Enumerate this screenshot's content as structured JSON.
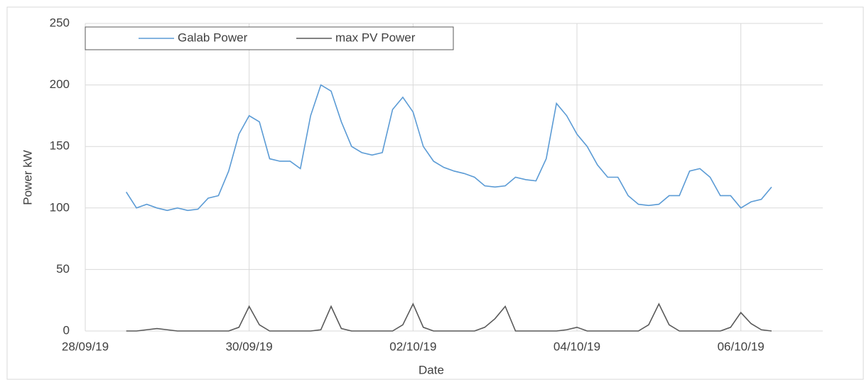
{
  "chart_data": {
    "type": "line",
    "xlabel": "Date",
    "ylabel": "Power kW",
    "x": [
      43736.5,
      43736.625,
      43736.75,
      43736.875,
      43737,
      43737.125,
      43737.25,
      43737.375,
      43737.5,
      43737.625,
      43737.75,
      43737.875,
      43738,
      43738.125,
      43738.25,
      43738.375,
      43738.5,
      43738.625,
      43738.75,
      43738.875,
      43739,
      43739.125,
      43739.25,
      43739.375,
      43739.5,
      43739.625,
      43739.75,
      43739.875,
      43740,
      43740.125,
      43740.25,
      43740.375,
      43740.5,
      43740.625,
      43740.75,
      43740.875,
      43741,
      43741.125,
      43741.25,
      43741.375,
      43741.5,
      43741.625,
      43741.75,
      43741.875,
      43742,
      43742.125,
      43742.25,
      43742.375,
      43742.5,
      43742.625,
      43742.75,
      43742.875,
      43743,
      43743.125,
      43743.25,
      43743.375,
      43743.5,
      43743.625,
      43743.75,
      43743.875,
      43744,
      43744.125,
      43744.25,
      43744.375
    ],
    "series": [
      {
        "name": "Galab Power",
        "color": "#5b9bd5",
        "values": [
          113,
          100,
          103,
          100,
          98,
          100,
          98,
          99,
          108,
          110,
          130,
          160,
          175,
          170,
          140,
          138,
          138,
          132,
          175,
          200,
          195,
          170,
          150,
          145,
          143,
          145,
          180,
          190,
          178,
          150,
          138,
          133,
          130,
          128,
          125,
          118,
          117,
          118,
          125,
          123,
          122,
          140,
          185,
          175,
          160,
          150,
          135,
          125,
          125,
          110,
          103,
          102,
          103,
          110,
          110,
          130,
          132,
          125,
          110,
          110,
          100,
          105,
          107,
          117
        ]
      },
      {
        "name": "max PV Power",
        "color": "#595959",
        "values": [
          0,
          0,
          1,
          2,
          1,
          0,
          0,
          0,
          0,
          0,
          0,
          3,
          20,
          5,
          0,
          0,
          0,
          0,
          0,
          1,
          20,
          2,
          0,
          0,
          0,
          0,
          0,
          5,
          22,
          3,
          0,
          0,
          0,
          0,
          0,
          3,
          10,
          20,
          0,
          0,
          0,
          0,
          0,
          1,
          3,
          0,
          0,
          0,
          0,
          0,
          0,
          5,
          22,
          5,
          0,
          0,
          0,
          0,
          0,
          3,
          15,
          6,
          1,
          0
        ]
      }
    ],
    "xlim": [
      43736,
      43745
    ],
    "xticks": [
      {
        "value": 43736,
        "label": "28/09/19"
      },
      {
        "value": 43738,
        "label": "30/09/19"
      },
      {
        "value": 43740,
        "label": "02/10/19"
      },
      {
        "value": 43742,
        "label": "04/10/19"
      },
      {
        "value": 43744,
        "label": "06/10/19"
      }
    ],
    "ylim": [
      0,
      250
    ],
    "yticks": [
      0,
      50,
      100,
      150,
      200,
      250
    ],
    "grid": true,
    "legend": "top-left"
  }
}
